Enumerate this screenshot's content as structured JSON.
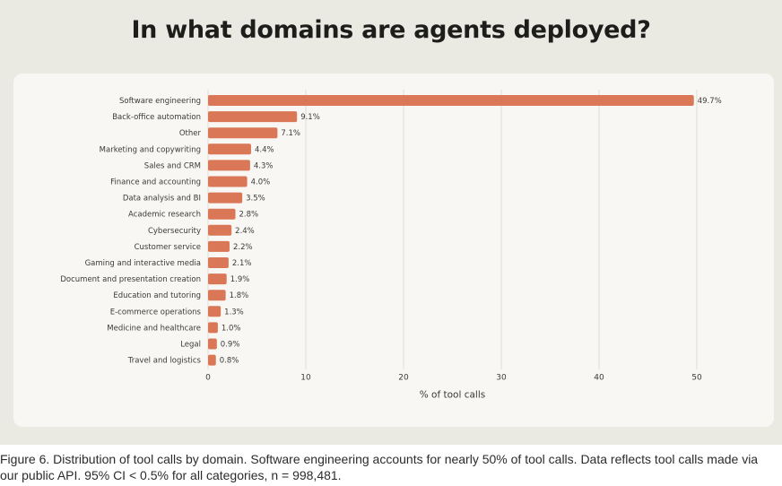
{
  "title": "In what domains are agents deployed?",
  "caption": {
    "label": "Figure 6.",
    "text": " Distribution of tool calls by domain. Software engineering accounts for nearly 50% of tool calls. Data reflects tool calls made via our public API. 95% CI < 0.5% for all categories, n = 998,481."
  },
  "colors": {
    "bar": "#d97757",
    "grid": "#dedcd6",
    "text": "#3a3a38",
    "background": "#f8f7f3"
  },
  "chart_data": {
    "type": "bar",
    "orientation": "horizontal",
    "categories": [
      "Software engineering",
      "Back-office automation",
      "Other",
      "Marketing and copywriting",
      "Sales and CRM",
      "Finance and accounting",
      "Data analysis and BI",
      "Academic research",
      "Cybersecurity",
      "Customer service",
      "Gaming and interactive media",
      "Document and presentation creation",
      "Education and tutoring",
      "E-commerce operations",
      "Medicine and healthcare",
      "Legal",
      "Travel and logistics"
    ],
    "values": [
      49.7,
      9.1,
      7.1,
      4.4,
      4.3,
      4.0,
      3.5,
      2.8,
      2.4,
      2.2,
      2.1,
      1.9,
      1.8,
      1.3,
      1.0,
      0.9,
      0.8
    ],
    "labels": [
      "49.7%",
      "9.1%",
      "7.1%",
      "4.4%",
      "4.3%",
      "4.0%",
      "3.5%",
      "2.8%",
      "2.4%",
      "2.2%",
      "2.1%",
      "1.9%",
      "1.8%",
      "1.3%",
      "1.0%",
      "0.9%",
      "0.8%"
    ],
    "xlabel": "% of tool calls",
    "xticks": [
      0,
      10,
      20,
      30,
      40,
      50
    ],
    "xlim": [
      0,
      50.3
    ],
    "grid": true
  }
}
